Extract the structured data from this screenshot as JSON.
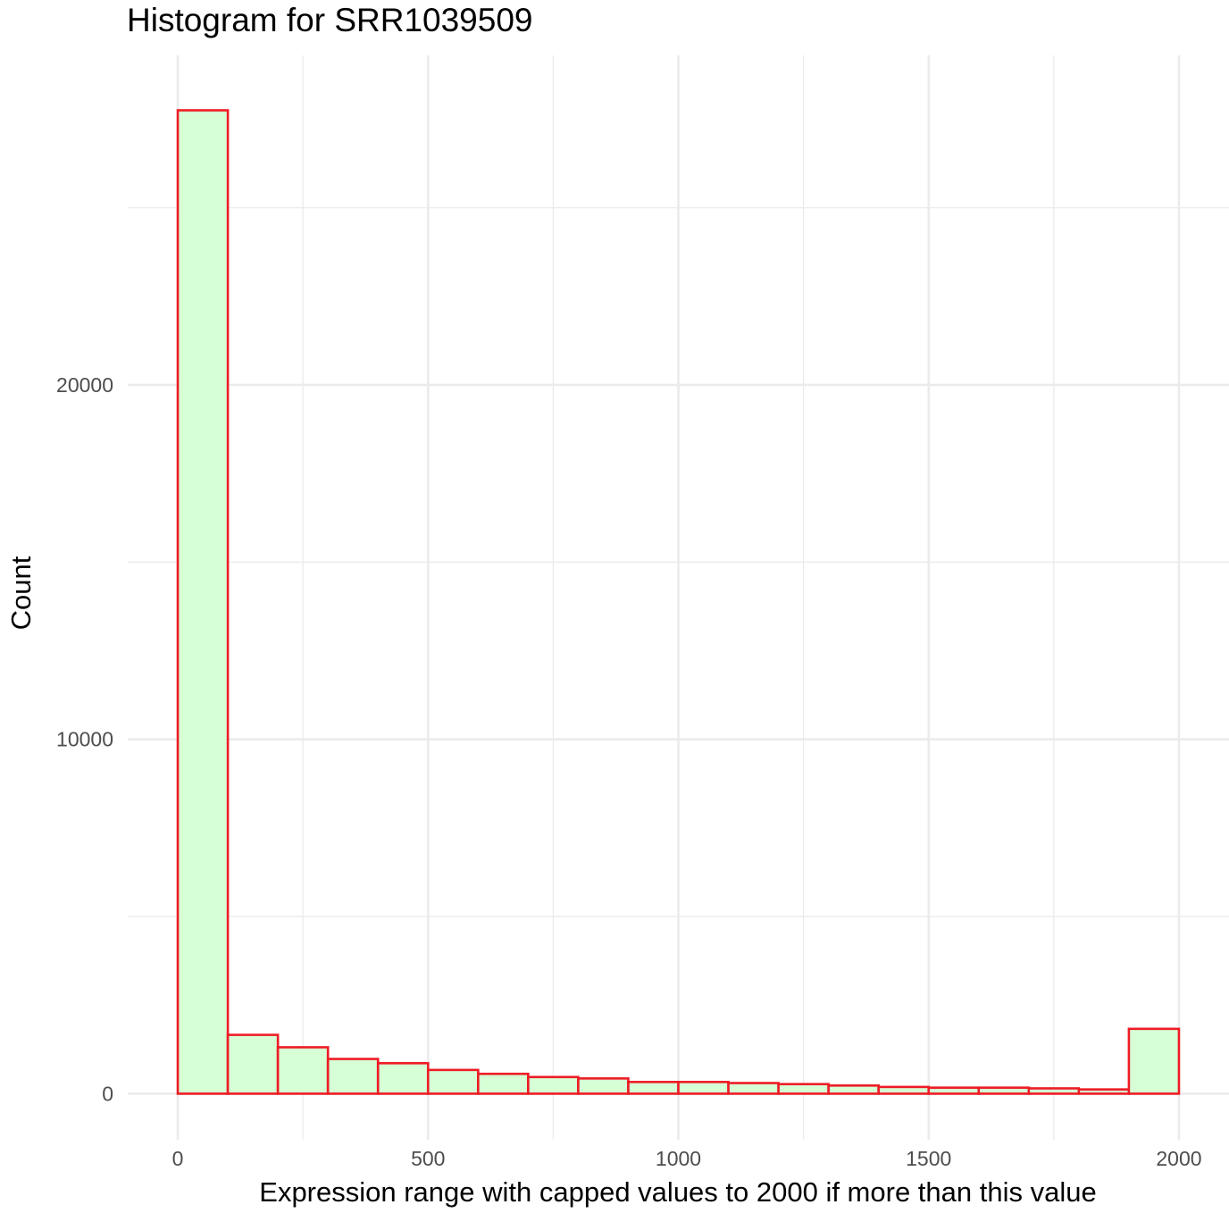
{
  "chart_data": {
    "type": "bar",
    "title": "Histogram for SRR1039509",
    "xlabel": "Expression range with capped values to 2000 if more than this value",
    "ylabel": "Count",
    "x_ticks": [
      0,
      500,
      1000,
      1500,
      2000
    ],
    "y_ticks": [
      0,
      10000,
      20000
    ],
    "xlim": [
      -100,
      2100
    ],
    "ylim": [
      -1300,
      29300
    ],
    "grid": true,
    "legend": "none",
    "bin_width": 100,
    "bins": [
      {
        "start": 0,
        "end": 100,
        "count": 27750
      },
      {
        "start": 100,
        "end": 200,
        "count": 1660
      },
      {
        "start": 200,
        "end": 300,
        "count": 1310
      },
      {
        "start": 300,
        "end": 400,
        "count": 980
      },
      {
        "start": 400,
        "end": 500,
        "count": 860
      },
      {
        "start": 500,
        "end": 600,
        "count": 670
      },
      {
        "start": 600,
        "end": 700,
        "count": 560
      },
      {
        "start": 700,
        "end": 800,
        "count": 470
      },
      {
        "start": 800,
        "end": 900,
        "count": 430
      },
      {
        "start": 900,
        "end": 1000,
        "count": 330
      },
      {
        "start": 1000,
        "end": 1100,
        "count": 330
      },
      {
        "start": 1100,
        "end": 1200,
        "count": 300
      },
      {
        "start": 1200,
        "end": 1300,
        "count": 270
      },
      {
        "start": 1300,
        "end": 1400,
        "count": 230
      },
      {
        "start": 1400,
        "end": 1500,
        "count": 190
      },
      {
        "start": 1500,
        "end": 1600,
        "count": 170
      },
      {
        "start": 1600,
        "end": 1700,
        "count": 170
      },
      {
        "start": 1700,
        "end": 1800,
        "count": 150
      },
      {
        "start": 1800,
        "end": 1900,
        "count": 120
      },
      {
        "start": 1900,
        "end": 2000,
        "count": 1830
      }
    ],
    "colors": {
      "bar_fill": "#d6ffd6",
      "bar_outline": "#ee1c25",
      "grid": "#ebebeb",
      "tick_text": "#4d4d4d"
    }
  }
}
